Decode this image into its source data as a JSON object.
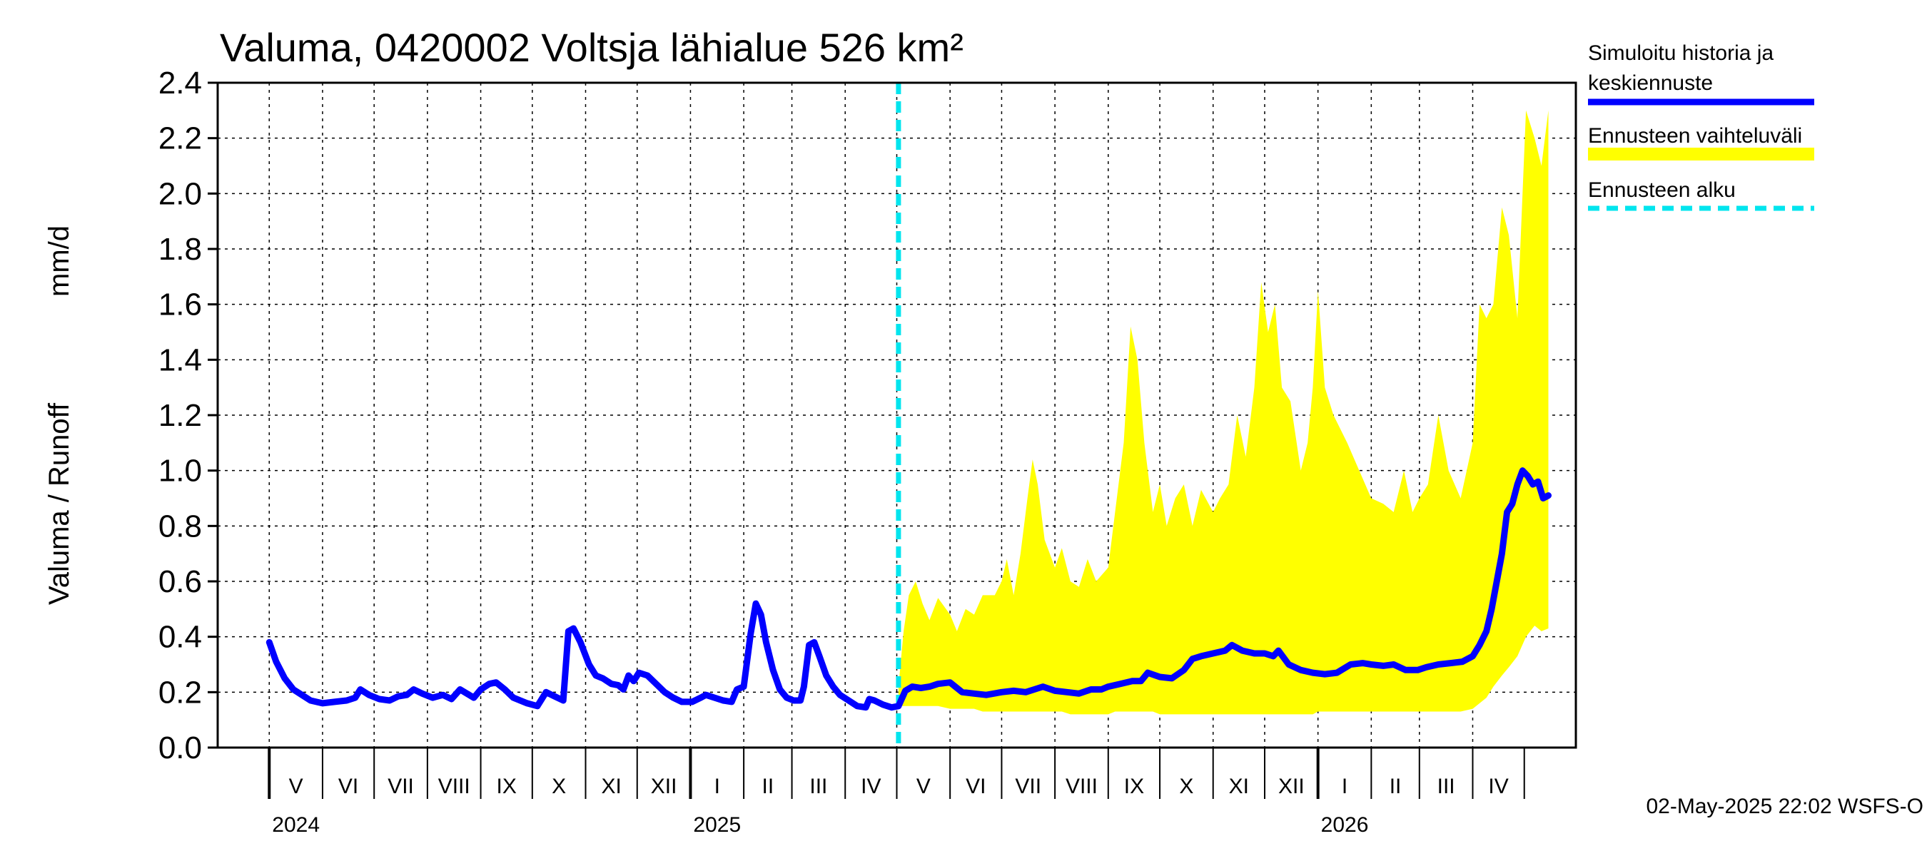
{
  "chart_data": {
    "type": "line",
    "title": "Valuma, 0420002 Voltsja lähialue 526 km²",
    "ylabel_left": "Valuma / Runoff",
    "ylabel_unit": "mm/d",
    "ylim": [
      0.0,
      2.4
    ],
    "yticks": [
      "0.0",
      "0.2",
      "0.4",
      "0.6",
      "0.8",
      "1.0",
      "1.2",
      "1.4",
      "1.6",
      "1.8",
      "2.0",
      "2.2",
      "2.4"
    ],
    "x_start": "2024-04-01",
    "x_end": "2026-05-31",
    "months": [
      {
        "label": "V",
        "start": "2024-05-01"
      },
      {
        "label": "VI",
        "start": "2024-06-01"
      },
      {
        "label": "VII",
        "start": "2024-07-01"
      },
      {
        "label": "VIII",
        "start": "2024-08-01"
      },
      {
        "label": "IX",
        "start": "2024-09-01"
      },
      {
        "label": "X",
        "start": "2024-10-01"
      },
      {
        "label": "XI",
        "start": "2024-11-01"
      },
      {
        "label": "XII",
        "start": "2024-12-01"
      },
      {
        "label": "I",
        "start": "2025-01-01"
      },
      {
        "label": "II",
        "start": "2025-02-01"
      },
      {
        "label": "III",
        "start": "2025-03-01"
      },
      {
        "label": "IV",
        "start": "2025-04-01"
      },
      {
        "label": "V",
        "start": "2025-05-01"
      },
      {
        "label": "VI",
        "start": "2025-06-01"
      },
      {
        "label": "VII",
        "start": "2025-07-01"
      },
      {
        "label": "VIII",
        "start": "2025-08-01"
      },
      {
        "label": "IX",
        "start": "2025-09-01"
      },
      {
        "label": "X",
        "start": "2025-10-01"
      },
      {
        "label": "XI",
        "start": "2025-11-01"
      },
      {
        "label": "XII",
        "start": "2025-12-01"
      },
      {
        "label": "I",
        "start": "2026-01-01"
      },
      {
        "label": "II",
        "start": "2026-02-01"
      },
      {
        "label": "III",
        "start": "2026-03-01"
      },
      {
        "label": "IV",
        "start": "2026-04-01"
      }
    ],
    "years": [
      {
        "label": "2024",
        "start": "2024-05-01"
      },
      {
        "label": "2025",
        "start": "2025-01-01"
      },
      {
        "label": "2026",
        "start": "2026-01-01"
      }
    ],
    "forecast_start": "2025-05-02",
    "series": [
      {
        "name": "Simuloitu historia ja keskiennuste",
        "color": "#0000ff",
        "points": [
          [
            "2024-05-01",
            0.38
          ],
          [
            "2024-05-05",
            0.31
          ],
          [
            "2024-05-10",
            0.25
          ],
          [
            "2024-05-15",
            0.21
          ],
          [
            "2024-05-20",
            0.19
          ],
          [
            "2024-05-25",
            0.17
          ],
          [
            "2024-06-01",
            0.16
          ],
          [
            "2024-06-08",
            0.165
          ],
          [
            "2024-06-15",
            0.17
          ],
          [
            "2024-06-20",
            0.18
          ],
          [
            "2024-06-23",
            0.21
          ],
          [
            "2024-06-28",
            0.19
          ],
          [
            "2024-07-04",
            0.175
          ],
          [
            "2024-07-10",
            0.17
          ],
          [
            "2024-07-15",
            0.185
          ],
          [
            "2024-07-20",
            0.19
          ],
          [
            "2024-07-24",
            0.21
          ],
          [
            "2024-07-29",
            0.195
          ],
          [
            "2024-08-04",
            0.18
          ],
          [
            "2024-08-10",
            0.19
          ],
          [
            "2024-08-15",
            0.175
          ],
          [
            "2024-08-20",
            0.21
          ],
          [
            "2024-08-28",
            0.18
          ],
          [
            "2024-09-01",
            0.21
          ],
          [
            "2024-09-06",
            0.23
          ],
          [
            "2024-09-10",
            0.235
          ],
          [
            "2024-09-15",
            0.21
          ],
          [
            "2024-09-20",
            0.18
          ],
          [
            "2024-09-28",
            0.16
          ],
          [
            "2024-10-04",
            0.15
          ],
          [
            "2024-10-09",
            0.2
          ],
          [
            "2024-10-14",
            0.185
          ],
          [
            "2024-10-19",
            0.17
          ],
          [
            "2024-10-22",
            0.42
          ],
          [
            "2024-10-25",
            0.43
          ],
          [
            "2024-10-29",
            0.38
          ],
          [
            "2024-11-03",
            0.3
          ],
          [
            "2024-11-07",
            0.26
          ],
          [
            "2024-11-11",
            0.25
          ],
          [
            "2024-11-16",
            0.23
          ],
          [
            "2024-11-20",
            0.225
          ],
          [
            "2024-11-23",
            0.21
          ],
          [
            "2024-11-26",
            0.26
          ],
          [
            "2024-11-29",
            0.24
          ],
          [
            "2024-12-02",
            0.27
          ],
          [
            "2024-12-07",
            0.26
          ],
          [
            "2024-12-12",
            0.23
          ],
          [
            "2024-12-17",
            0.2
          ],
          [
            "2024-12-22",
            0.18
          ],
          [
            "2024-12-27",
            0.165
          ],
          [
            "2025-01-02",
            0.165
          ],
          [
            "2025-01-07",
            0.18
          ],
          [
            "2025-01-10",
            0.19
          ],
          [
            "2025-01-15",
            0.18
          ],
          [
            "2025-01-20",
            0.17
          ],
          [
            "2025-01-25",
            0.165
          ],
          [
            "2025-01-28",
            0.21
          ],
          [
            "2025-02-01",
            0.22
          ],
          [
            "2025-02-05",
            0.41
          ],
          [
            "2025-02-08",
            0.52
          ],
          [
            "2025-02-11",
            0.48
          ],
          [
            "2025-02-14",
            0.38
          ],
          [
            "2025-02-18",
            0.28
          ],
          [
            "2025-02-22",
            0.21
          ],
          [
            "2025-02-26",
            0.18
          ],
          [
            "2025-03-02",
            0.17
          ],
          [
            "2025-03-06",
            0.17
          ],
          [
            "2025-03-08",
            0.22
          ],
          [
            "2025-03-11",
            0.37
          ],
          [
            "2025-03-14",
            0.38
          ],
          [
            "2025-03-17",
            0.33
          ],
          [
            "2025-03-21",
            0.26
          ],
          [
            "2025-03-25",
            0.22
          ],
          [
            "2025-03-29",
            0.19
          ],
          [
            "2025-04-03",
            0.17
          ],
          [
            "2025-04-08",
            0.15
          ],
          [
            "2025-04-13",
            0.145
          ],
          [
            "2025-04-15",
            0.175
          ],
          [
            "2025-04-18",
            0.17
          ],
          [
            "2025-04-23",
            0.155
          ],
          [
            "2025-04-28",
            0.145
          ],
          [
            "2025-05-02",
            0.15
          ],
          [
            "2025-05-06",
            0.205
          ],
          [
            "2025-05-10",
            0.22
          ],
          [
            "2025-05-15",
            0.215
          ],
          [
            "2025-05-20",
            0.22
          ],
          [
            "2025-05-25",
            0.23
          ],
          [
            "2025-06-01",
            0.235
          ],
          [
            "2025-06-08",
            0.2
          ],
          [
            "2025-06-15",
            0.195
          ],
          [
            "2025-06-22",
            0.19
          ],
          [
            "2025-07-01",
            0.2
          ],
          [
            "2025-07-08",
            0.205
          ],
          [
            "2025-07-15",
            0.2
          ],
          [
            "2025-07-20",
            0.21
          ],
          [
            "2025-07-25",
            0.22
          ],
          [
            "2025-08-01",
            0.205
          ],
          [
            "2025-08-08",
            0.2
          ],
          [
            "2025-08-15",
            0.195
          ],
          [
            "2025-08-22",
            0.21
          ],
          [
            "2025-08-28",
            0.21
          ],
          [
            "2025-09-01",
            0.22
          ],
          [
            "2025-09-08",
            0.23
          ],
          [
            "2025-09-15",
            0.24
          ],
          [
            "2025-09-20",
            0.24
          ],
          [
            "2025-09-24",
            0.27
          ],
          [
            "2025-10-01",
            0.255
          ],
          [
            "2025-10-08",
            0.25
          ],
          [
            "2025-10-15",
            0.28
          ],
          [
            "2025-10-20",
            0.32
          ],
          [
            "2025-10-25",
            0.33
          ],
          [
            "2025-11-01",
            0.34
          ],
          [
            "2025-11-08",
            0.35
          ],
          [
            "2025-11-12",
            0.37
          ],
          [
            "2025-11-18",
            0.35
          ],
          [
            "2025-11-25",
            0.34
          ],
          [
            "2025-12-01",
            0.34
          ],
          [
            "2025-12-06",
            0.33
          ],
          [
            "2025-12-09",
            0.35
          ],
          [
            "2025-12-15",
            0.3
          ],
          [
            "2025-12-22",
            0.28
          ],
          [
            "2025-12-29",
            0.27
          ],
          [
            "2026-01-05",
            0.265
          ],
          [
            "2026-01-12",
            0.27
          ],
          [
            "2026-01-20",
            0.3
          ],
          [
            "2026-01-27",
            0.305
          ],
          [
            "2026-02-01",
            0.3
          ],
          [
            "2026-02-08",
            0.295
          ],
          [
            "2026-02-14",
            0.3
          ],
          [
            "2026-02-21",
            0.28
          ],
          [
            "2026-02-28",
            0.28
          ],
          [
            "2026-03-05",
            0.29
          ],
          [
            "2026-03-12",
            0.3
          ],
          [
            "2026-03-19",
            0.305
          ],
          [
            "2026-03-26",
            0.31
          ],
          [
            "2026-04-01",
            0.33
          ],
          [
            "2026-04-05",
            0.37
          ],
          [
            "2026-04-09",
            0.42
          ],
          [
            "2026-04-12",
            0.5
          ],
          [
            "2026-04-15",
            0.6
          ],
          [
            "2026-04-18",
            0.7
          ],
          [
            "2026-04-21",
            0.85
          ],
          [
            "2026-04-24",
            0.88
          ],
          [
            "2026-04-27",
            0.95
          ],
          [
            "2026-04-30",
            1.0
          ],
          [
            "2026-05-03",
            0.98
          ],
          [
            "2026-05-06",
            0.95
          ],
          [
            "2026-05-09",
            0.96
          ],
          [
            "2026-05-12",
            0.9
          ],
          [
            "2026-05-15",
            0.91
          ]
        ]
      }
    ],
    "band": {
      "name": "Ennusteen vaihteluväli",
      "color": "#ffff00",
      "points": [
        [
          "2025-05-02",
          0.22,
          0.15
        ],
        [
          "2025-05-05",
          0.42,
          0.15
        ],
        [
          "2025-05-08",
          0.55,
          0.15
        ],
        [
          "2025-05-12",
          0.6,
          0.15
        ],
        [
          "2025-05-16",
          0.52,
          0.15
        ],
        [
          "2025-05-20",
          0.46,
          0.15
        ],
        [
          "2025-05-25",
          0.54,
          0.15
        ],
        [
          "2025-06-01",
          0.48,
          0.14
        ],
        [
          "2025-06-05",
          0.42,
          0.14
        ],
        [
          "2025-06-10",
          0.5,
          0.14
        ],
        [
          "2025-06-15",
          0.48,
          0.14
        ],
        [
          "2025-06-20",
          0.55,
          0.13
        ],
        [
          "2025-06-27",
          0.55,
          0.13
        ],
        [
          "2025-07-01",
          0.6,
          0.13
        ],
        [
          "2025-07-04",
          0.68,
          0.13
        ],
        [
          "2025-07-08",
          0.55,
          0.13
        ],
        [
          "2025-07-12",
          0.7,
          0.13
        ],
        [
          "2025-07-16",
          0.9,
          0.13
        ],
        [
          "2025-07-19",
          1.04,
          0.13
        ],
        [
          "2025-07-22",
          0.95,
          0.13
        ],
        [
          "2025-07-26",
          0.75,
          0.13
        ],
        [
          "2025-08-01",
          0.65,
          0.13
        ],
        [
          "2025-08-05",
          0.72,
          0.13
        ],
        [
          "2025-08-10",
          0.6,
          0.12
        ],
        [
          "2025-08-15",
          0.58,
          0.12
        ],
        [
          "2025-08-20",
          0.68,
          0.12
        ],
        [
          "2025-08-25",
          0.6,
          0.12
        ],
        [
          "2025-09-01",
          0.65,
          0.12
        ],
        [
          "2025-09-05",
          0.85,
          0.13
        ],
        [
          "2025-09-10",
          1.1,
          0.13
        ],
        [
          "2025-09-14",
          1.52,
          0.13
        ],
        [
          "2025-09-18",
          1.4,
          0.13
        ],
        [
          "2025-09-22",
          1.1,
          0.13
        ],
        [
          "2025-09-27",
          0.85,
          0.13
        ],
        [
          "2025-10-01",
          0.95,
          0.12
        ],
        [
          "2025-10-05",
          0.8,
          0.12
        ],
        [
          "2025-10-10",
          0.9,
          0.12
        ],
        [
          "2025-10-15",
          0.95,
          0.12
        ],
        [
          "2025-10-20",
          0.8,
          0.12
        ],
        [
          "2025-10-25",
          0.93,
          0.12
        ],
        [
          "2025-11-01",
          0.85,
          0.12
        ],
        [
          "2025-11-05",
          0.9,
          0.12
        ],
        [
          "2025-11-10",
          0.95,
          0.12
        ],
        [
          "2025-11-15",
          1.2,
          0.12
        ],
        [
          "2025-11-20",
          1.05,
          0.12
        ],
        [
          "2025-11-25",
          1.3,
          0.12
        ],
        [
          "2025-11-29",
          1.68,
          0.12
        ],
        [
          "2025-12-03",
          1.5,
          0.12
        ],
        [
          "2025-12-07",
          1.6,
          0.12
        ],
        [
          "2025-12-11",
          1.3,
          0.12
        ],
        [
          "2025-12-16",
          1.25,
          0.12
        ],
        [
          "2025-12-22",
          1.0,
          0.12
        ],
        [
          "2025-12-26",
          1.1,
          0.12
        ],
        [
          "2025-12-29",
          1.3,
          0.12
        ],
        [
          "2026-01-01",
          1.65,
          0.13
        ],
        [
          "2026-01-05",
          1.3,
          0.13
        ],
        [
          "2026-01-10",
          1.2,
          0.13
        ],
        [
          "2026-01-18",
          1.1,
          0.13
        ],
        [
          "2026-01-25",
          1.0,
          0.13
        ],
        [
          "2026-02-01",
          0.9,
          0.13
        ],
        [
          "2026-02-08",
          0.88,
          0.13
        ],
        [
          "2026-02-14",
          0.85,
          0.13
        ],
        [
          "2026-02-20",
          1.0,
          0.13
        ],
        [
          "2026-02-25",
          0.85,
          0.13
        ],
        [
          "2026-03-01",
          0.9,
          0.13
        ],
        [
          "2026-03-06",
          0.95,
          0.13
        ],
        [
          "2026-03-12",
          1.2,
          0.13
        ],
        [
          "2026-03-18",
          1.0,
          0.13
        ],
        [
          "2026-03-25",
          0.9,
          0.13
        ],
        [
          "2026-04-01",
          1.1,
          0.14
        ],
        [
          "2026-04-05",
          1.6,
          0.16
        ],
        [
          "2026-04-09",
          1.55,
          0.18
        ],
        [
          "2026-04-13",
          1.6,
          0.22
        ],
        [
          "2026-04-18",
          1.95,
          0.26
        ],
        [
          "2026-04-22",
          1.85,
          0.29
        ],
        [
          "2026-04-27",
          1.55,
          0.33
        ],
        [
          "2026-05-02",
          2.3,
          0.4
        ],
        [
          "2026-05-07",
          2.2,
          0.44
        ],
        [
          "2026-05-11",
          2.1,
          0.42
        ],
        [
          "2026-05-15",
          2.3,
          0.43
        ]
      ]
    },
    "legend": [
      {
        "label_line1": "Simuloitu historia ja",
        "label_line2": "keskiennuste",
        "color": "#0000ff",
        "style": "solid"
      },
      {
        "label_line1": "Ennusteen vaihteluväli",
        "label_line2": "",
        "color": "#ffff00",
        "style": "band"
      },
      {
        "label_line1": "Ennusteen alku",
        "label_line2": "",
        "color": "#00ffff",
        "style": "dashed"
      }
    ],
    "legend_position": "right",
    "footer": "02-May-2025 22:02 WSFS-O",
    "grid": true
  }
}
